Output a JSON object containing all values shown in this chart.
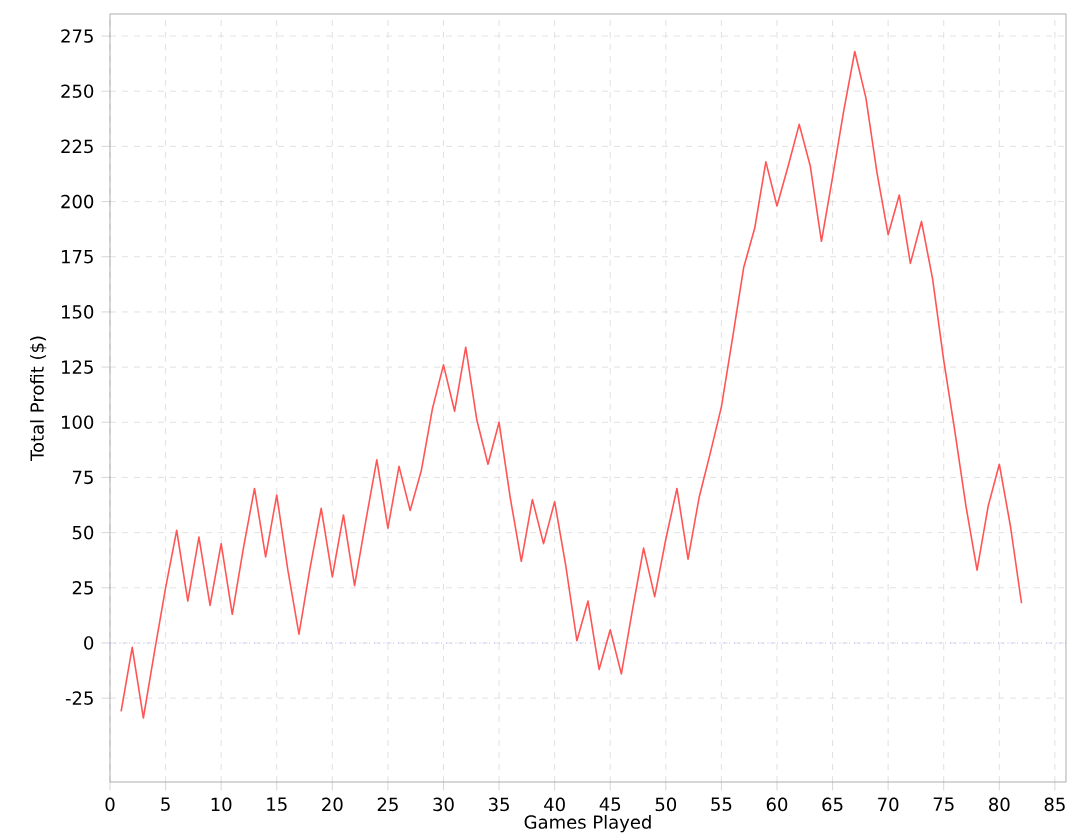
{
  "chart_data": {
    "type": "line",
    "xlabel": "Games Played",
    "ylabel": "Total Profit ($)",
    "x": [
      1,
      2,
      3,
      4,
      5,
      6,
      7,
      8,
      9,
      10,
      11,
      12,
      13,
      14,
      15,
      16,
      17,
      18,
      19,
      20,
      21,
      22,
      23,
      24,
      25,
      26,
      27,
      28,
      29,
      30,
      31,
      32,
      33,
      34,
      35,
      36,
      37,
      38,
      39,
      40,
      41,
      42,
      43,
      44,
      45,
      46,
      47,
      48,
      49,
      50,
      51,
      52,
      53,
      54,
      55,
      56,
      57,
      58,
      59,
      60,
      61,
      62,
      63,
      64,
      65,
      66,
      67,
      68,
      69,
      70,
      71,
      72,
      73,
      74,
      75,
      76,
      77,
      78,
      79,
      80,
      81,
      82
    ],
    "series": [
      {
        "color": "#ff5555",
        "values": [
          -31,
          -2,
          -34,
          -4,
          25,
          51,
          19,
          48,
          17,
          45,
          13,
          43,
          70,
          39,
          67,
          33,
          4,
          34,
          61,
          30,
          58,
          26,
          55,
          83,
          52,
          80,
          60,
          78,
          106,
          126,
          105,
          134,
          101,
          81,
          100,
          66,
          37,
          65,
          45,
          64,
          35,
          1,
          19,
          -12,
          6,
          -14,
          15,
          43,
          21,
          47,
          70,
          38,
          66,
          86,
          107,
          138,
          170,
          188,
          218,
          198,
          216,
          235,
          216,
          182,
          211,
          241,
          268,
          247,
          213,
          185,
          203,
          172,
          191,
          165,
          128,
          96,
          62,
          33,
          62,
          81,
          53,
          18
        ]
      }
    ],
    "xlim": [
      0,
      86
    ],
    "ylim": [
      -63,
      285
    ],
    "xticks": [
      0,
      5,
      10,
      15,
      20,
      25,
      30,
      35,
      40,
      45,
      50,
      55,
      60,
      65,
      70,
      75,
      80,
      85
    ],
    "yticks": [
      -25,
      0,
      25,
      50,
      75,
      100,
      125,
      150,
      175,
      200,
      225,
      250,
      275
    ],
    "grid": true,
    "marker": "none",
    "line_style": "solid",
    "ref_lines": [
      {
        "axis": "y",
        "value": 0,
        "color": "#6666ff",
        "line_style": "dotted"
      }
    ]
  }
}
